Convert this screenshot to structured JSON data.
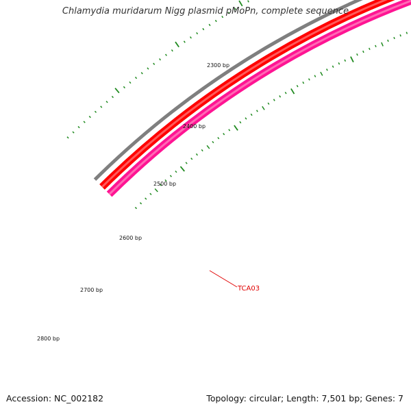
{
  "title": "Chlamydia muridarum Nigg plasmid pMoPn, complete sequence",
  "accession_label": "Accession: NC_002182",
  "summary_label": "Topology: circular; Length: 7,501 bp; Genes: 7",
  "scale_labels": [
    "2300 bp",
    "2400 bp",
    "2500 bp",
    "2600 bp",
    "2700 bp",
    "2800 bp"
  ],
  "feature_label": "TCA03",
  "colors": {
    "tick": "#1f8a1f",
    "backbone": "#7f7f7f",
    "forward_gene": "#ff0000",
    "forward_gene_light": "#ff5a5a",
    "reverse_gene": "#ff1493",
    "reverse_gene_light": "#ff69b4",
    "feature_label": "#e00000",
    "title": "#333333"
  }
}
